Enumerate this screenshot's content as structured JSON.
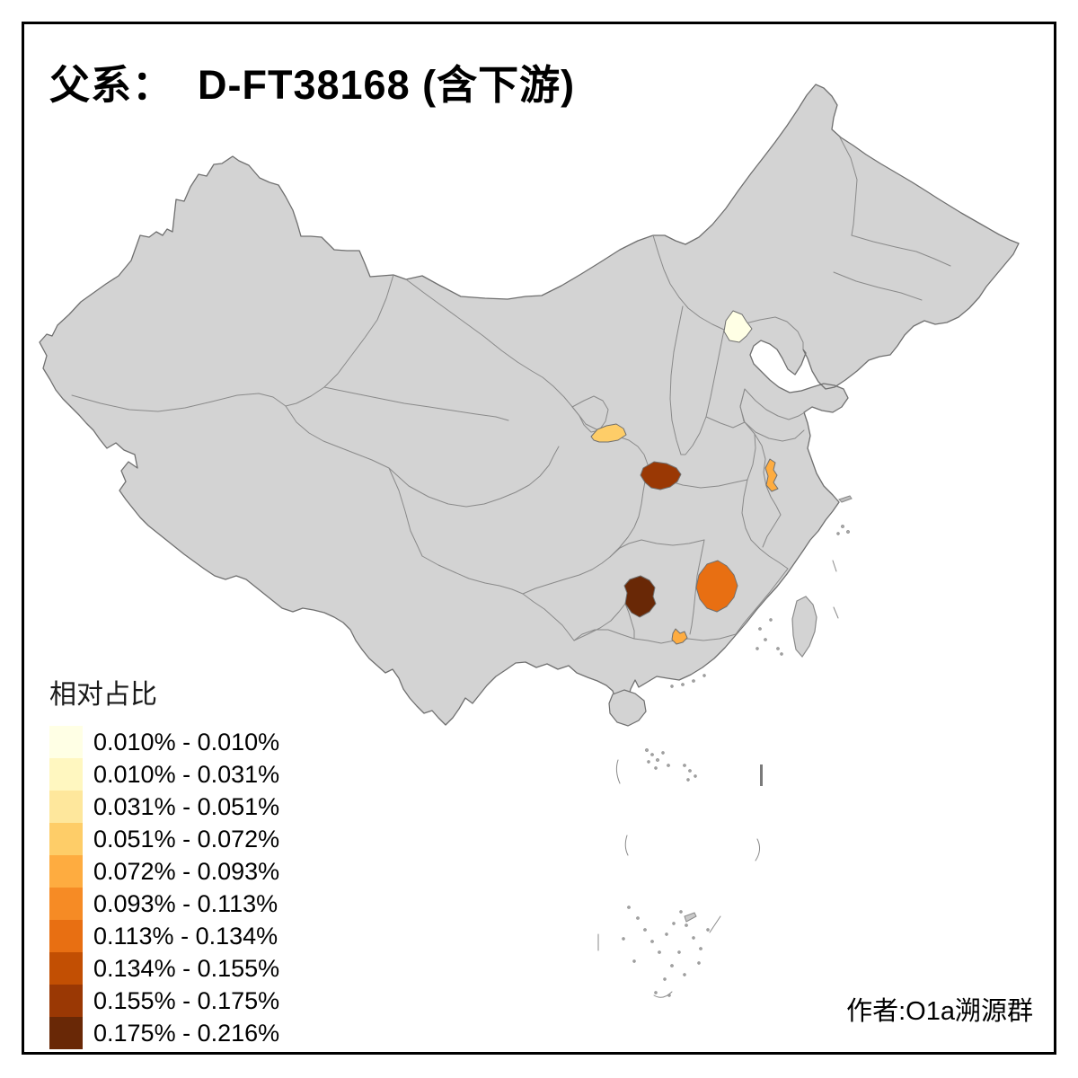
{
  "title": "父系：  D-FT38168 (含下游)",
  "attribution": "作者:O1a溯源群",
  "legend": {
    "title": "相对占比",
    "items": [
      {
        "label": "0.010% - 0.010%",
        "color": "#FFFFE5"
      },
      {
        "label": "0.010% - 0.031%",
        "color": "#FFF7C0"
      },
      {
        "label": "0.031% - 0.051%",
        "color": "#FEE79C"
      },
      {
        "label": "0.051% - 0.072%",
        "color": "#FECD68"
      },
      {
        "label": "0.072% - 0.093%",
        "color": "#FEAC40"
      },
      {
        "label": "0.093% - 0.113%",
        "color": "#F68B25"
      },
      {
        "label": "0.113% - 0.134%",
        "color": "#E86F12"
      },
      {
        "label": "0.134% - 0.155%",
        "color": "#C24F03"
      },
      {
        "label": "0.155% - 0.175%",
        "color": "#9A3804"
      },
      {
        "label": "0.175% - 0.216%",
        "color": "#692806"
      }
    ]
  },
  "map": {
    "land_color": "#D3D3D3",
    "national_border_color": "#6f6f6f",
    "province_border_color": "#8a8a8a",
    "sea_color": "#FFFFFF",
    "regions": [
      {
        "id": "beijing-area",
        "bin": 0,
        "value_range": "0.010% - 0.010%"
      },
      {
        "id": "southeast-gansu-area",
        "bin": 3,
        "value_range": "0.051% - 0.072%"
      },
      {
        "id": "south-shaanxi-area",
        "bin": 8,
        "value_range": "0.155% - 0.175%"
      },
      {
        "id": "central-anhui-strip",
        "bin": 4,
        "value_range": "0.072% - 0.093%"
      },
      {
        "id": "central-hunan-area",
        "bin": 9,
        "value_range": "0.175% - 0.216%"
      },
      {
        "id": "south-jiangxi-area",
        "bin": 6,
        "value_range": "0.113% - 0.134%"
      },
      {
        "id": "north-guangdong-area",
        "bin": 4,
        "value_range": "0.072% - 0.093%"
      }
    ]
  }
}
